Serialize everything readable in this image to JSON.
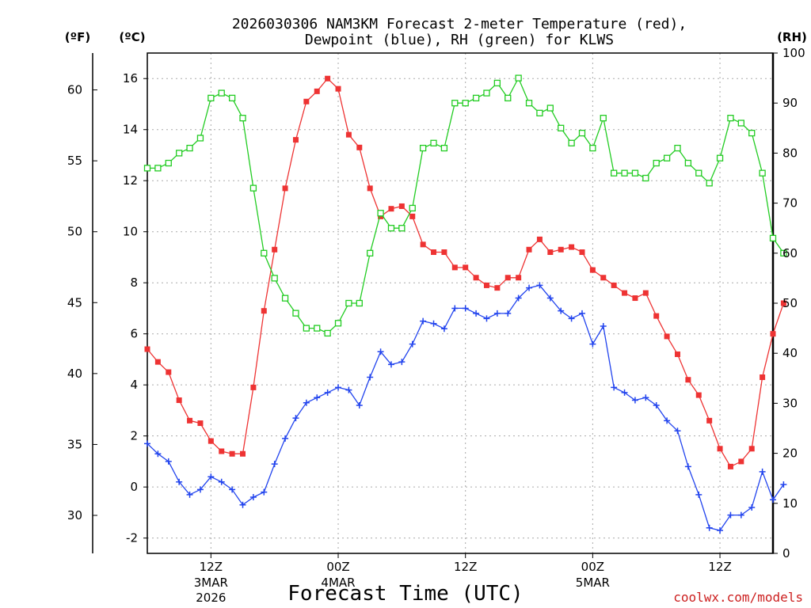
{
  "chart_data": {
    "type": "line",
    "title_line1": "2026030306 NAM3KM Forecast 2-meter Temperature (red),",
    "title_line2": "Dewpoint (blue), RH (green) for KLWS",
    "xlabel": "Forecast Time (UTC)",
    "credit": "coolwx.com/models",
    "units": {
      "fahrenheit": "(ºF)",
      "celsius": "(ºC)",
      "rh": "(RH)"
    },
    "x_hours_start": 0,
    "x_hours_end": 59,
    "ylim_c": [
      -2.6,
      17.0
    ],
    "ylim_rh": [
      0,
      100
    ],
    "c_ticks": [
      "-2",
      "0",
      "2",
      "4",
      "6",
      "8",
      "10",
      "12",
      "14",
      "16"
    ],
    "f_ticks": [
      "30",
      "35",
      "40",
      "45",
      "50",
      "55",
      "60"
    ],
    "rh_ticks": [
      "0",
      "10",
      "20",
      "30",
      "40",
      "50",
      "60",
      "70",
      "80",
      "90",
      "100"
    ],
    "x_ticks": [
      {
        "hour": 6,
        "label": "12Z",
        "sub": "3MAR",
        "sub2": "2026"
      },
      {
        "hour": 18,
        "label": "00Z",
        "sub": "4MAR",
        "sub2": ""
      },
      {
        "hour": 30,
        "label": "12Z",
        "sub": "",
        "sub2": ""
      },
      {
        "hour": 42,
        "label": "00Z",
        "sub": "5MAR",
        "sub2": ""
      },
      {
        "hour": 54,
        "label": "12Z",
        "sub": "",
        "sub2": ""
      }
    ],
    "colors": {
      "temperature": "#ee3333",
      "dewpoint": "#2244ee",
      "rh": "#22cc22"
    },
    "series": [
      {
        "name": "Temperature (°C)",
        "axis": "celsius",
        "values": [
          5.4,
          4.9,
          4.5,
          3.4,
          2.6,
          2.5,
          1.8,
          1.4,
          1.3,
          1.3,
          3.9,
          6.9,
          9.3,
          11.7,
          13.6,
          15.1,
          15.5,
          16.0,
          15.6,
          13.8,
          13.3,
          11.7,
          10.6,
          10.9,
          11.0,
          10.6,
          9.5,
          9.2,
          9.2,
          8.6,
          8.6,
          8.2,
          7.9,
          7.8,
          8.2,
          8.2,
          9.3,
          9.7,
          9.2,
          9.3,
          9.4,
          9.2,
          8.5,
          8.2,
          7.9,
          7.6,
          7.4,
          7.6,
          6.7,
          5.9,
          5.2,
          4.2,
          3.6,
          2.6,
          1.5,
          0.8,
          1.0,
          1.5,
          4.3,
          6.0,
          7.2
        ]
      },
      {
        "name": "Dewpoint (°C)",
        "axis": "celsius",
        "values": [
          1.7,
          1.3,
          1.0,
          0.2,
          -0.3,
          -0.1,
          0.4,
          0.2,
          -0.1,
          -0.7,
          -0.4,
          -0.2,
          0.9,
          1.9,
          2.7,
          3.3,
          3.5,
          3.7,
          3.9,
          3.8,
          3.2,
          4.3,
          5.3,
          4.8,
          4.9,
          5.6,
          6.5,
          6.4,
          6.2,
          7.0,
          7.0,
          6.8,
          6.6,
          6.8,
          6.8,
          7.4,
          7.8,
          7.9,
          7.4,
          6.9,
          6.6,
          6.8,
          5.6,
          6.3,
          3.9,
          3.7,
          3.4,
          3.5,
          3.2,
          2.6,
          2.2,
          0.8,
          -0.3,
          -1.6,
          -1.7,
          -1.1,
          -1.1,
          -0.8,
          0.6,
          -0.5,
          0.1
        ]
      },
      {
        "name": "RH (%)",
        "axis": "rh",
        "values": [
          77,
          77,
          78,
          80,
          81,
          83,
          91,
          92,
          91,
          87,
          73,
          60,
          55,
          51,
          48,
          45,
          45,
          44,
          46,
          50,
          50,
          60,
          68,
          65,
          65,
          69,
          81,
          82,
          81,
          90,
          90,
          91,
          92,
          94,
          91,
          95,
          90,
          88,
          89,
          85,
          82,
          84,
          81,
          87,
          76,
          76,
          76,
          75,
          78,
          79,
          81,
          78,
          76,
          74,
          79,
          87,
          86,
          84,
          76,
          63,
          60
        ]
      }
    ]
  }
}
